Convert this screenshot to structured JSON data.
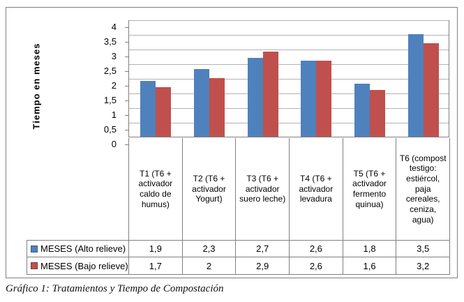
{
  "chart_data": {
    "type": "bar",
    "title": "",
    "xlabel": "",
    "ylabel": "Tiempo en meses",
    "ylim": [
      0,
      4
    ],
    "ytick_step": 0.5,
    "ytick_labels": [
      "4",
      "3,5",
      "3",
      "2,5",
      "2",
      "1,5",
      "1",
      "0,5",
      "0"
    ],
    "grid": true,
    "legend_position": "bottom-table",
    "categories": [
      "T1 (T6 + activador caldo de humus)",
      "T2 (T6 + activador Yogurt)",
      "T3 (T6 + activador suero leche)",
      "T4 (T6 + activador levadura",
      "T5 (T6 + activador fermento quinua)",
      "T6 (compost testigo: estiércol, paja cereales, ceniza, agua)"
    ],
    "series": [
      {
        "name": "MESES (Alto relieve)",
        "color": "#4F81BD",
        "values": [
          1.9,
          2.3,
          2.7,
          2.6,
          1.8,
          3.5
        ],
        "display_values": [
          "1,9",
          "2,3",
          "2,7",
          "2,6",
          "1,8",
          "3,5"
        ]
      },
      {
        "name": "MESES (Bajo relieve)",
        "color": "#C0504D",
        "values": [
          1.7,
          2,
          2.9,
          2.6,
          1.6,
          3.2
        ],
        "display_values": [
          "1,7",
          "2",
          "2,9",
          "2,6",
          "1,6",
          "3,2"
        ]
      }
    ]
  },
  "caption": "Gráfico 1: Tratamientos y Tiempo de Compostación"
}
